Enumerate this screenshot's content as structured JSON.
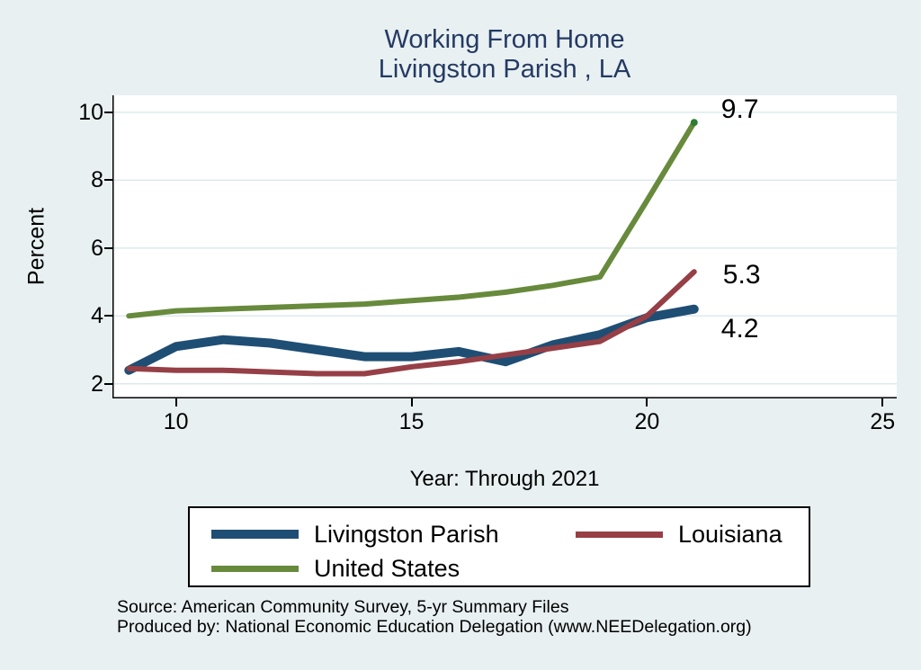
{
  "title": {
    "line1": "Working From Home",
    "line2": "Livingston Parish , LA"
  },
  "chart_data": {
    "type": "line",
    "title": "Working From Home — Livingston Parish , LA",
    "xlabel": "Year: Through 2021",
    "ylabel": "Percent",
    "x_ticks": [
      10,
      15,
      20,
      25
    ],
    "y_ticks": [
      2,
      4,
      6,
      8,
      10
    ],
    "x_range": [
      8.65,
      25.3
    ],
    "y_range": [
      1.57,
      10.5
    ],
    "grid": "horizontal-gridlines",
    "legend_position": "bottom",
    "x": [
      9,
      10,
      11,
      12,
      13,
      14,
      15,
      16,
      17,
      18,
      19,
      20,
      21
    ],
    "series": [
      {
        "name": "Livingston Parish",
        "color": "#1f4e74",
        "line_width": 10,
        "end_label": "4.2",
        "values": [
          2.4,
          3.1,
          3.3,
          3.2,
          3.0,
          2.8,
          2.8,
          2.95,
          2.65,
          3.15,
          3.45,
          3.95,
          4.2
        ]
      },
      {
        "name": "Louisiana",
        "color": "#963f46",
        "line_width": 6,
        "end_label": "5.3",
        "values": [
          2.45,
          2.4,
          2.4,
          2.35,
          2.3,
          2.3,
          2.5,
          2.65,
          2.85,
          3.05,
          3.25,
          4.0,
          5.3
        ]
      },
      {
        "name": "United States",
        "color": "#678a3c",
        "line_width": 6,
        "end_label": "9.7",
        "end_dot_color": "#2e7d32",
        "values": [
          4.0,
          4.15,
          4.2,
          4.25,
          4.3,
          4.35,
          4.45,
          4.55,
          4.7,
          4.9,
          5.15,
          7.4,
          9.7
        ]
      }
    ]
  },
  "footer": {
    "source": "Source: American Community Survey, 5-yr Summary Files",
    "produced_by": "Produced by: National Economic Education Delegation (www.NEEDelegation.org)"
  },
  "colors": {
    "background": "#e8f0f2",
    "plot_background": "#ffffff",
    "gridline": "#dde9ec",
    "axis": "#000000",
    "title_text": "#253a63",
    "body_text": "#000000"
  }
}
